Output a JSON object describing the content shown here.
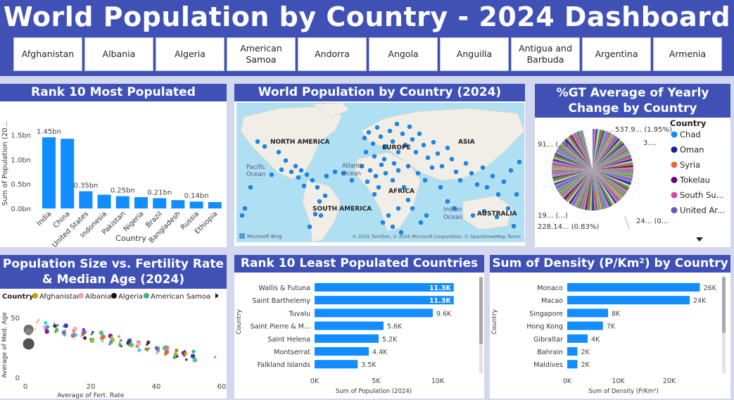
{
  "title": "World Population by Country - 2024 Dashboard",
  "slicers": [
    "Afghanistan",
    "Albania",
    "Algeria",
    "American Samoa",
    "Andorra",
    "Angola",
    "Anguilla",
    "Antigua and Barbuda",
    "Argentina",
    "Armenia"
  ],
  "top10": {
    "title": "Rank 10 Most Populated Countries",
    "ylabel": "Sum of Population (20...",
    "xlabel": "Country",
    "yticks": [
      "0.0bn",
      "0.5bn",
      "1.0bn",
      "1.5bn"
    ]
  },
  "map": {
    "title": "World Population by Country (2024)",
    "labels": [
      "NORTH AMERICA",
      "EUROPE",
      "ASIA",
      "Atlantic",
      "Ocean",
      "Pacific",
      "Ocean",
      "AFRICA",
      "SOUTH AMERICA",
      "Indian",
      "Ocean",
      "AUSTRALIA"
    ],
    "attribution": "© 2025 TomTom, © 2025 Microsoft Corporation, © OpenStreetMap  Terms",
    "bing": "Microsoft Bing"
  },
  "pie": {
    "title": "%GT Average of Yearly Change by Country",
    "legend_title": "Country",
    "legend": [
      {
        "name": "Chad",
        "color": "#118dff"
      },
      {
        "name": "Oman",
        "color": "#12239e"
      },
      {
        "name": "Syria",
        "color": "#e66c37"
      },
      {
        "name": "Tokelau",
        "color": "#6b007b"
      },
      {
        "name": "South Su...",
        "color": "#e044a7"
      },
      {
        "name": "United Ar...",
        "color": "#744ec2"
      }
    ],
    "labels": [
      "537.9... (1.95%)",
      "3....",
      "91... (...)",
      "19... (...)",
      "228.14... (0.83%)",
      "24... (0..."
    ]
  },
  "scatter": {
    "title": "Population Size vs. Fertility Rate & Median Age (2024)",
    "legend_title": "Country",
    "legend": [
      {
        "name": "Afghanistan",
        "color": "#c8a000"
      },
      {
        "name": "Albania",
        "color": "#f0a0c0"
      },
      {
        "name": "Algeria",
        "color": "#111111"
      },
      {
        "name": "American Samoa",
        "color": "#3cb371"
      }
    ],
    "xlabel": "Average of Fert. Rate",
    "ylabel": "Average of Med. Age",
    "xticks": [
      "0",
      "20",
      "40",
      "60"
    ],
    "yticks": [
      "0",
      "50"
    ]
  },
  "least": {
    "title": "Rank 10 Least Populated Countries",
    "ylabel": "Country",
    "xlabel": "Sum of Population (2024)",
    "xticks": [
      "0K",
      "5K",
      "10K"
    ]
  },
  "density": {
    "title": "Sum of Density (P/Km²) by Country",
    "ylabel": "Country",
    "xlabel": "Sum of Density (P/Km²)",
    "xticks": [
      "0K",
      "10K",
      "20K"
    ]
  },
  "chart_data": [
    {
      "type": "bar",
      "title": "Rank 10 Most Populated Countries",
      "categories": [
        "India",
        "China",
        "United States",
        "Indonesia",
        "Pakistan",
        "Nigeria",
        "Brazil",
        "Bangladesh",
        "Russia",
        "Ethiopia"
      ],
      "values": [
        1.45,
        1.42,
        0.35,
        0.28,
        0.25,
        0.23,
        0.21,
        0.17,
        0.14,
        0.13
      ],
      "data_labels": [
        "1.45bn",
        "",
        "0.35bn",
        "",
        "0.25bn",
        "",
        "0.21bn",
        "",
        "0.14bn",
        ""
      ],
      "ylim": [
        0,
        1.6
      ]
    },
    {
      "type": "bar",
      "orientation": "horizontal",
      "title": "Rank 10 Least Populated Countries",
      "categories": [
        "Wallis & Futuna",
        "Saint Barthelemy",
        "Tuvalu",
        "Saint Pierre & M...",
        "Saint Helena",
        "Montserrat",
        "Falkland Islands"
      ],
      "values": [
        11.3,
        11.3,
        9.6,
        5.6,
        5.2,
        4.4,
        3.5
      ],
      "data_labels": [
        "11.3K",
        "11.3K",
        "9.6K",
        "5.6K",
        "5.2K",
        "4.4K",
        "3.5K"
      ],
      "xlim": [
        0,
        13
      ]
    },
    {
      "type": "bar",
      "orientation": "horizontal",
      "title": "Sum of Density (P/Km²) by Country",
      "categories": [
        "Monaco",
        "Macao",
        "Singapore",
        "Hong Kong",
        "Gibraltar",
        "Bahrain",
        "Maldives"
      ],
      "values": [
        26,
        24,
        8,
        7,
        4,
        2,
        2
      ],
      "data_labels": [
        "26K",
        "24K",
        "8K",
        "7K",
        "4K",
        "2K",
        "2K"
      ],
      "xlim": [
        0,
        28
      ]
    }
  ]
}
